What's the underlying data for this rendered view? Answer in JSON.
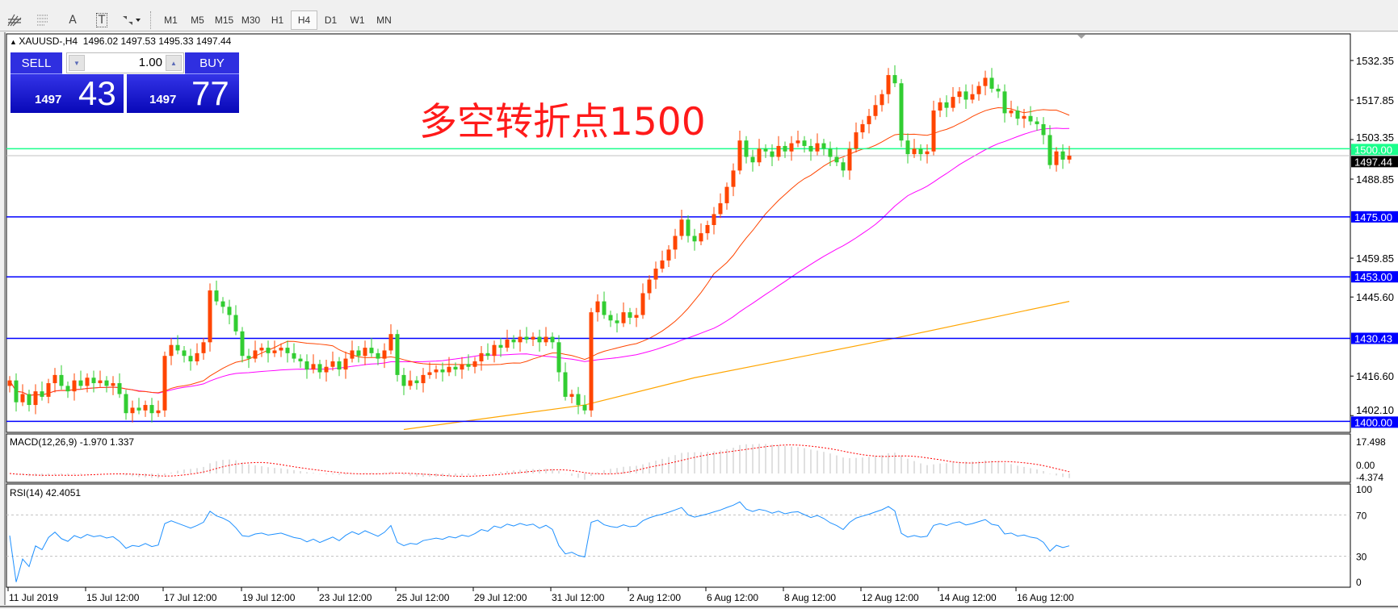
{
  "toolbar": {
    "icons": [
      "fibonacci-fan-icon",
      "fibonacci-levels-icon",
      "text-icon",
      "text-label-icon",
      "arrows-icon"
    ],
    "icon_glyphs": {
      "text": "A",
      "text_label": "T"
    },
    "timeframes": [
      "M1",
      "M5",
      "M15",
      "M30",
      "H1",
      "H4",
      "D1",
      "W1",
      "MN"
    ],
    "active_timeframe": "H4"
  },
  "chart": {
    "symbol_header": "XAUUSD-,H4",
    "ohlc_header": "1496.02 1497.53 1495.33 1497.44",
    "annotation": "多空转折点1500",
    "annotation_color": "#ff1a1a",
    "bull_color": "#ff4500",
    "bear_color": "#32cd32",
    "price_axis_ticks": [
      "1532.35",
      "1517.85",
      "1503.35",
      "1488.85",
      "1459.85",
      "1445.60",
      "1416.60",
      "1402.10"
    ],
    "levels": [
      {
        "price": 1500.0,
        "label": "1500.00",
        "color": "#1aff8c"
      },
      {
        "price": 1475.0,
        "label": "1475.00",
        "color": "#0000ff"
      },
      {
        "price": 1453.0,
        "label": "1453.00",
        "color": "#0000ff"
      },
      {
        "price": 1430.43,
        "label": "1430.43",
        "color": "#0000ff"
      },
      {
        "price": 1400.0,
        "label": "1400.00",
        "color": "#0000ff"
      }
    ],
    "current_price": {
      "price": 1497.44,
      "label": "1497.44"
    },
    "closes": [
      1415,
      1407,
      1410,
      1406,
      1411,
      1409,
      1414,
      1417,
      1413,
      1411,
      1415,
      1413,
      1416,
      1414,
      1415,
      1413,
      1414,
      1410,
      1403,
      1405,
      1404,
      1406,
      1403,
      1404,
      1424,
      1428,
      1426,
      1424,
      1422,
      1425,
      1429,
      1448,
      1444,
      1442,
      1439,
      1433,
      1424,
      1423,
      1426,
      1427,
      1425,
      1426,
      1427,
      1425,
      1423,
      1422,
      1419,
      1421,
      1418,
      1420,
      1422,
      1419,
      1423,
      1426,
      1424,
      1427,
      1425,
      1423,
      1426,
      1432,
      1417,
      1413,
      1415,
      1414,
      1417,
      1418,
      1419,
      1418,
      1420,
      1419,
      1421,
      1420,
      1422,
      1425,
      1424,
      1428,
      1427,
      1430,
      1429,
      1431,
      1430,
      1431,
      1429,
      1431,
      1429,
      1418,
      1409,
      1410,
      1406,
      1404,
      1440,
      1444,
      1439,
      1437,
      1436,
      1440,
      1438,
      1439,
      1447,
      1452,
      1456,
      1459,
      1463,
      1468,
      1474,
      1468,
      1466,
      1469,
      1472,
      1476,
      1480,
      1486,
      1492,
      1503,
      1497,
      1495,
      1500,
      1499,
      1497,
      1501,
      1499,
      1502,
      1503,
      1501,
      1499,
      1502,
      1500,
      1497,
      1495,
      1492,
      1500,
      1506,
      1509,
      1512,
      1516,
      1520,
      1527,
      1524,
      1503,
      1498,
      1500,
      1498,
      1499,
      1514,
      1517,
      1515,
      1519,
      1521,
      1518,
      1520,
      1523,
      1526,
      1522,
      1521,
      1513,
      1514,
      1511,
      1512,
      1510,
      1509,
      1505,
      1494,
      1499,
      1496,
      1497.44
    ],
    "first_open": 1413,
    "ma_fast_color": "#ff4500",
    "ma_mid_color": "#ff00ff",
    "ma_slow_color": "#ffa500",
    "ma_slow_points": [
      [
        61,
        1397
      ],
      [
        89,
        1406
      ],
      [
        106,
        1416
      ],
      [
        136,
        1430
      ],
      [
        164,
        1444
      ]
    ],
    "time_labels": [
      "11 Jul 2019",
      "15 Jul 12:00",
      "17 Jul 12:00",
      "19 Jul 12:00",
      "23 Jul 12:00",
      "25 Jul 12:00",
      "29 Jul 12:00",
      "31 Jul 12:00",
      "2 Aug 12:00",
      "6 Aug 12:00",
      "8 Aug 12:00",
      "12 Aug 12:00",
      "14 Aug 12:00",
      "16 Aug 12:00"
    ]
  },
  "trade_panel": {
    "sell_label": "SELL",
    "buy_label": "BUY",
    "lot": "1.00",
    "sell_price_small": "1497",
    "sell_price_big": "43",
    "buy_price_small": "1497",
    "buy_price_big": "77"
  },
  "macd": {
    "header": "MACD(12,26,9) -1.970 1.337",
    "axis": [
      "17.498",
      "0.00",
      "-4.374"
    ],
    "histogram_color": "#c0c0c0",
    "signal_color": "#ff0000"
  },
  "rsi": {
    "header": "RSI(14) 42.4051",
    "axis": [
      "100",
      "70",
      "30",
      "0"
    ],
    "line_color": "#1e90ff"
  }
}
